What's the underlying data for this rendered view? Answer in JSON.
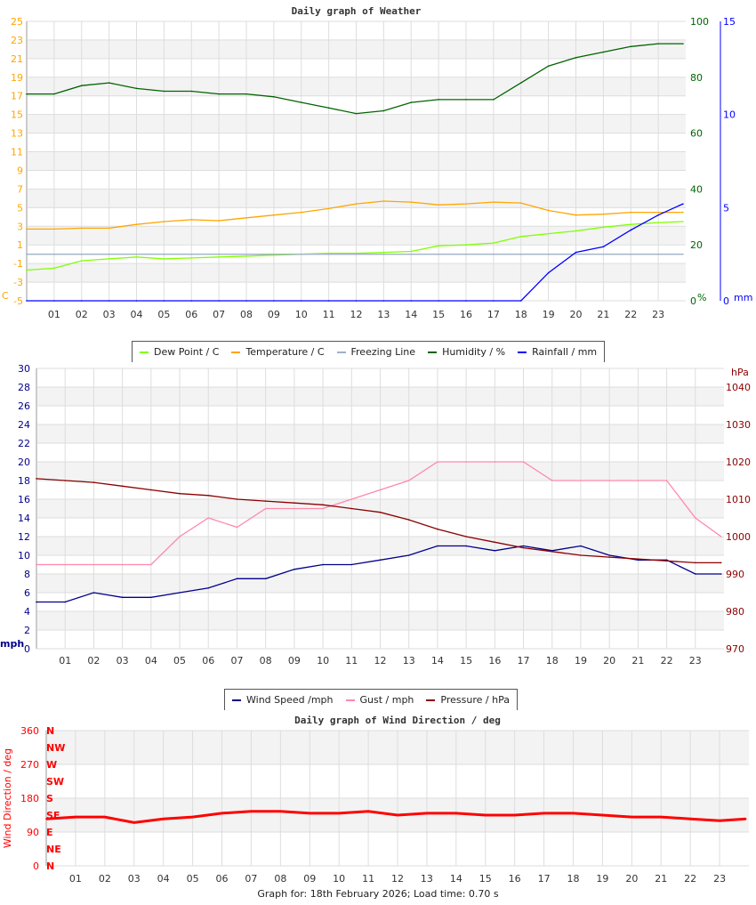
{
  "chart_data": [
    {
      "type": "line",
      "title": "Daily graph of Weather",
      "x_ticks": [
        "01",
        "02",
        "03",
        "04",
        "05",
        "06",
        "07",
        "08",
        "09",
        "10",
        "11",
        "12",
        "13",
        "14",
        "15",
        "16",
        "17",
        "18",
        "19",
        "20",
        "21",
        "22",
        "23"
      ],
      "x": [
        0,
        1,
        2,
        3,
        4,
        5,
        6,
        7,
        8,
        9,
        10,
        11,
        12,
        13,
        14,
        15,
        16,
        17,
        18,
        19,
        20,
        21,
        22,
        23,
        24
      ],
      "y_left": {
        "label": "C",
        "ylim": [
          -5,
          25
        ],
        "ticks": [
          -5,
          -3,
          -1,
          1,
          3,
          5,
          7,
          9,
          11,
          13,
          15,
          17,
          19,
          21,
          23,
          25
        ],
        "color": "#ffa500"
      },
      "y_right1": {
        "label": "%",
        "ylim": [
          0,
          100
        ],
        "ticks": [
          0,
          20,
          40,
          60,
          80,
          100
        ],
        "color": "#006400"
      },
      "y_right2": {
        "label": "mm",
        "ylim": [
          0,
          15
        ],
        "ticks": [
          0,
          5,
          10,
          15
        ],
        "color": "#0000ff"
      },
      "grid": true,
      "legend": "bottom",
      "series": [
        {
          "name": "Dew Point / C",
          "axis": "left",
          "color": "#7fff00",
          "values": [
            -1.7,
            -1.5,
            -0.7,
            -0.5,
            -0.3,
            -0.5,
            -0.4,
            -0.3,
            -0.2,
            -0.1,
            0,
            0.1,
            0.1,
            0.2,
            0.3,
            0.9,
            1.0,
            1.2,
            1.9,
            2.2,
            2.5,
            2.9,
            3.2,
            3.4,
            3.5
          ]
        },
        {
          "name": "Temperature / C",
          "axis": "left",
          "color": "#ffa500",
          "values": [
            2.7,
            2.7,
            2.8,
            2.8,
            3.2,
            3.5,
            3.7,
            3.6,
            3.9,
            4.2,
            4.5,
            4.9,
            5.4,
            5.7,
            5.6,
            5.3,
            5.4,
            5.6,
            5.5,
            4.7,
            4.2,
            4.3,
            4.5,
            4.5,
            4.5
          ]
        },
        {
          "name": "Freezing Line",
          "axis": "left",
          "color": "#a0b0c8",
          "values": [
            0,
            0,
            0,
            0,
            0,
            0,
            0,
            0,
            0,
            0,
            0,
            0,
            0,
            0,
            0,
            0,
            0,
            0,
            0,
            0,
            0,
            0,
            0,
            0,
            0
          ]
        },
        {
          "name": "Humidity / %",
          "axis": "right1",
          "color": "#006400",
          "values": [
            74,
            74,
            77,
            78,
            76,
            75,
            75,
            74,
            74,
            73,
            71,
            69,
            67,
            68,
            71,
            72,
            72,
            72,
            78,
            84,
            87,
            89,
            91,
            92,
            92
          ]
        },
        {
          "name": "Rainfall / mm",
          "axis": "right2",
          "color": "#0000ff",
          "values": [
            0,
            0,
            0,
            0,
            0,
            0,
            0,
            0,
            0,
            0,
            0,
            0,
            0,
            0,
            0,
            0,
            0,
            0,
            0,
            1.5,
            2.6,
            2.9,
            3.8,
            4.6,
            5.2
          ]
        }
      ]
    },
    {
      "type": "line",
      "title": "",
      "x_ticks": [
        "01",
        "02",
        "03",
        "04",
        "05",
        "06",
        "07",
        "08",
        "09",
        "10",
        "11",
        "12",
        "13",
        "14",
        "15",
        "16",
        "17",
        "18",
        "19",
        "20",
        "21",
        "22",
        "23"
      ],
      "x": [
        0,
        1,
        2,
        3,
        4,
        5,
        6,
        7,
        8,
        9,
        10,
        11,
        12,
        13,
        14,
        15,
        16,
        17,
        18,
        19,
        20,
        21,
        22,
        23,
        24
      ],
      "y_left": {
        "label": "mph",
        "ylim": [
          0,
          30
        ],
        "ticks": [
          0,
          2,
          4,
          6,
          8,
          10,
          12,
          14,
          16,
          18,
          20,
          22,
          24,
          26,
          28,
          30
        ],
        "color": "#00008b"
      },
      "y_right1": {
        "label": "hPa",
        "ylim": [
          970,
          1045
        ],
        "ticks": [
          970,
          980,
          990,
          1000,
          1010,
          1020,
          1030,
          1040
        ],
        "color": "#8b0000"
      },
      "grid": true,
      "legend": "bottom",
      "series": [
        {
          "name": "Wind Speed /mph",
          "axis": "left",
          "color": "#00008b",
          "values": [
            5,
            5,
            6,
            5.5,
            5.5,
            6,
            6.5,
            7.5,
            7.5,
            8.5,
            9,
            9,
            9.5,
            10,
            11,
            11,
            10.5,
            11,
            10.5,
            11,
            10,
            9.5,
            9.5,
            8,
            8
          ]
        },
        {
          "name": "Gust / mph",
          "axis": "left",
          "color": "#ff88aa",
          "values": [
            9,
            9,
            9,
            9,
            9,
            12,
            14,
            13,
            15,
            15,
            15,
            16,
            17,
            18,
            20,
            20,
            20,
            20,
            18,
            18,
            18,
            18,
            18,
            14,
            12
          ]
        },
        {
          "name": "Pressure / hPa",
          "axis": "right1",
          "color": "#8b0000",
          "values": [
            1015.5,
            1015,
            1014.5,
            1013.5,
            1012.5,
            1011.5,
            1011,
            1010,
            1009.5,
            1009,
            1008.5,
            1007.5,
            1006.5,
            1004.5,
            1002,
            1000,
            998.5,
            997,
            996,
            995,
            994.5,
            994,
            993.5,
            993,
            993
          ]
        }
      ]
    },
    {
      "type": "line",
      "title": "Daily graph of Wind Direction / deg",
      "x_ticks": [
        "01",
        "02",
        "03",
        "04",
        "05",
        "06",
        "07",
        "08",
        "09",
        "10",
        "11",
        "12",
        "13",
        "14",
        "15",
        "16",
        "17",
        "18",
        "19",
        "20",
        "21",
        "22",
        "23"
      ],
      "x": [
        0,
        1,
        2,
        3,
        4,
        5,
        6,
        7,
        8,
        9,
        10,
        11,
        12,
        13,
        14,
        15,
        16,
        17,
        18,
        19,
        20,
        21,
        22,
        23,
        24
      ],
      "y_left": {
        "label": "Wind Direction / deg",
        "ylim": [
          0,
          360
        ],
        "ticks": [
          0,
          90,
          180,
          270,
          360
        ],
        "color": "#ff0000"
      },
      "compass": [
        "N",
        "NE",
        "E",
        "SE",
        "S",
        "SW",
        "W",
        "NW",
        "N"
      ],
      "grid": true,
      "series": [
        {
          "color": "#ff0000",
          "values": [
            125,
            130,
            130,
            115,
            125,
            130,
            140,
            145,
            145,
            140,
            140,
            145,
            135,
            140,
            140,
            135,
            135,
            140,
            140,
            135,
            130,
            130,
            125,
            120,
            125
          ]
        }
      ]
    }
  ],
  "footer": "Graph for: 18th February 2026; Load time: 0.70 s"
}
